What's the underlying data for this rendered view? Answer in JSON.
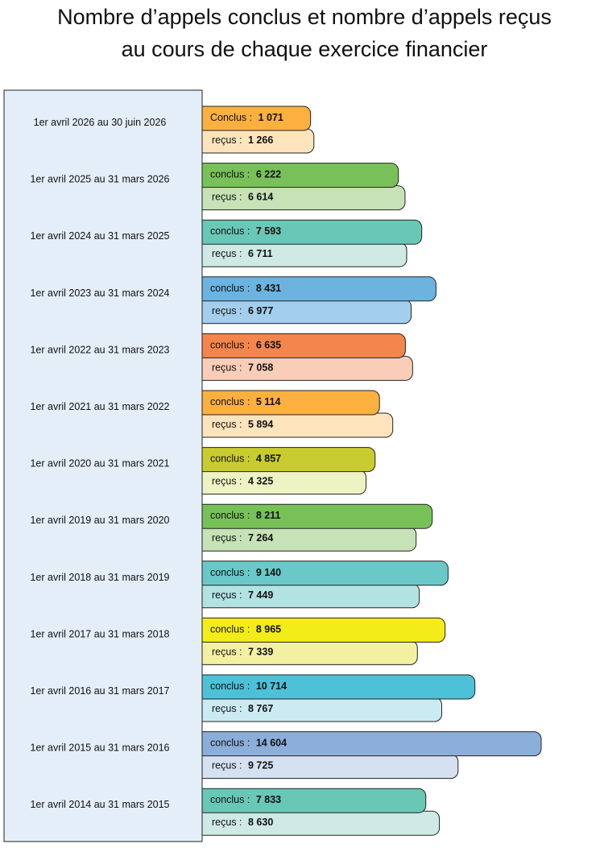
{
  "chart_data": {
    "type": "bar",
    "title": [
      "Nombre d’appels conclus et nombre d’appels reçus",
      "au cours de chaque exercice financier"
    ],
    "categories": [
      "1er avril 2026 au 30 juin 2026",
      "1er avril 2025 au 31 mars 2026",
      "1er avril 2024 au 31 mars 2025",
      "1er avril 2023 au 31 mars 2024",
      "1er avril 2022 au 31 mars 2023",
      "1er avril 2021 au 31 mars 2022",
      "1er avril 2020 au 31 mars 2021",
      "1er avril 2019 au 31 mars 2020",
      "1er avril 2018 au 31 mars 2019",
      "1er avril 2017 au 31 mars 2018",
      "1er avril 2016 au 31 mars 2017",
      "1er avril 2015 au 31 mars 2016",
      "1er avril 2014 au 31 mars 2015"
    ],
    "series": [
      {
        "labels": [
          "Conclus :",
          "conclus :",
          "conclus :",
          "conclus :",
          "conclus :",
          "conclus :",
          "conclus :",
          "conclus :",
          "conclus :",
          "conclus :",
          "conclus :",
          "conclus :",
          "conclus :"
        ],
        "values": [
          1071,
          6222,
          7593,
          8431,
          6635,
          5114,
          4857,
          8211,
          9140,
          8965,
          10714,
          14604,
          7833
        ],
        "value_labels": [
          "1 071",
          "6 222",
          "7 593",
          "8 431",
          "6 635",
          "5 114",
          "4 857",
          "8 211",
          "9 140",
          "8 965",
          "10 714",
          "14 604",
          "7 833"
        ],
        "colors": [
          "#fbb040",
          "#78c159",
          "#69c7b6",
          "#6cb3e0",
          "#f4854c",
          "#fbb040",
          "#c8cc2e",
          "#78c159",
          "#6ac8c8",
          "#f3ec19",
          "#4dc1d7",
          "#8caedb",
          "#69c7b6"
        ]
      },
      {
        "labels": [
          "reçus :",
          "reçus :",
          "reçus :",
          "reçus :",
          "reçus :",
          "reçus :",
          "reçus :",
          "reçus :",
          "reçus :",
          "reçus :",
          "reçus :",
          "reçus :",
          "reçus :"
        ],
        "values": [
          1266,
          6614,
          6711,
          6977,
          7058,
          5894,
          4325,
          7264,
          7449,
          7339,
          8767,
          9725,
          8630
        ],
        "value_labels": [
          "1 266",
          "6 614",
          "6 711",
          "6 977",
          "7 058",
          "5 894",
          "4 325",
          "7 264",
          "7 449",
          "7 339",
          "8 767",
          "9 725",
          "8 630"
        ],
        "colors": [
          "#fde4bd",
          "#c6e2b6",
          "#cfe9e5",
          "#a3cfec",
          "#f9cdb8",
          "#fde4bd",
          "#eef3c4",
          "#c6e2b6",
          "#b2e2e2",
          "#f3f1a1",
          "#cbebf3",
          "#d5e1f0",
          "#cfe9e5"
        ]
      }
    ]
  }
}
